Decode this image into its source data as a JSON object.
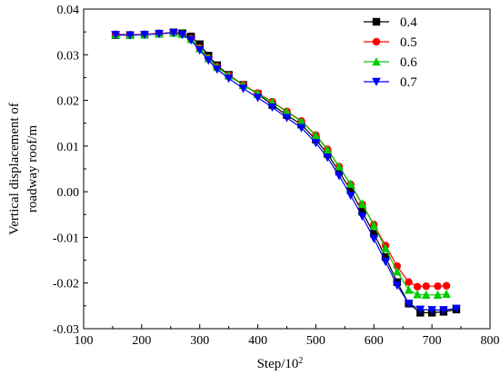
{
  "chart_data": {
    "type": "line",
    "xlabel": "Step/10",
    "xlabel_exponent": "2",
    "ylabel": "Vertical displacement of roadway roof/m",
    "xlim": [
      100,
      800
    ],
    "ylim": [
      -0.03,
      0.04
    ],
    "x_ticks": [
      100,
      200,
      300,
      400,
      500,
      600,
      700,
      800
    ],
    "y_ticks": [
      -0.03,
      -0.02,
      -0.01,
      0.0,
      0.01,
      0.02,
      0.03,
      0.04
    ],
    "x_tick_labels": [
      "100",
      "200",
      "300",
      "400",
      "500",
      "600",
      "700",
      "800"
    ],
    "y_tick_labels": [
      "-0.03",
      "-0.02",
      "-0.01",
      "0.00",
      "0.01",
      "0.02",
      "0.03",
      "0.04"
    ],
    "legend_position": "top-right",
    "series": [
      {
        "name": "0.4",
        "color": "#000000",
        "marker": "square",
        "points": [
          [
            155,
            0.0343
          ],
          [
            180,
            0.0343
          ],
          [
            205,
            0.0344
          ],
          [
            230,
            0.0346
          ],
          [
            255,
            0.0349
          ],
          [
            270,
            0.0347
          ],
          [
            285,
            0.034
          ],
          [
            300,
            0.0323
          ],
          [
            315,
            0.0298
          ],
          [
            330,
            0.0277
          ],
          [
            350,
            0.0256
          ],
          [
            375,
            0.0234
          ],
          [
            400,
            0.0214
          ],
          [
            425,
            0.019
          ],
          [
            450,
            0.0168
          ],
          [
            475,
            0.0147
          ],
          [
            500,
            0.0114
          ],
          [
            520,
            0.0083
          ],
          [
            540,
            0.0044
          ],
          [
            560,
            0.0003
          ],
          [
            580,
            -0.0044
          ],
          [
            600,
            -0.0092
          ],
          [
            620,
            -0.0143
          ],
          [
            640,
            -0.0198
          ],
          [
            660,
            -0.0245
          ],
          [
            680,
            -0.0265
          ],
          [
            700,
            -0.0265
          ],
          [
            720,
            -0.0263
          ],
          [
            742,
            -0.0258
          ]
        ]
      },
      {
        "name": "0.5",
        "color": "#ff0000",
        "marker": "circle",
        "points": [
          [
            155,
            0.0345
          ],
          [
            180,
            0.0344
          ],
          [
            205,
            0.0345
          ],
          [
            230,
            0.0347
          ],
          [
            255,
            0.0348
          ],
          [
            270,
            0.0345
          ],
          [
            285,
            0.0335
          ],
          [
            300,
            0.0315
          ],
          [
            315,
            0.0293
          ],
          [
            330,
            0.0274
          ],
          [
            350,
            0.0255
          ],
          [
            375,
            0.0234
          ],
          [
            400,
            0.0216
          ],
          [
            425,
            0.0197
          ],
          [
            450,
            0.0176
          ],
          [
            475,
            0.0155
          ],
          [
            500,
            0.0124
          ],
          [
            520,
            0.0093
          ],
          [
            540,
            0.0055
          ],
          [
            560,
            0.0016
          ],
          [
            580,
            -0.0028
          ],
          [
            600,
            -0.0072
          ],
          [
            620,
            -0.0118
          ],
          [
            640,
            -0.0163
          ],
          [
            660,
            -0.0198
          ],
          [
            675,
            -0.0208
          ],
          [
            690,
            -0.0207
          ],
          [
            710,
            -0.0207
          ],
          [
            725,
            -0.0206
          ]
        ]
      },
      {
        "name": "0.6",
        "color": "#00cc00",
        "marker": "triangle-up",
        "points": [
          [
            155,
            0.0344
          ],
          [
            180,
            0.0343
          ],
          [
            205,
            0.0344
          ],
          [
            230,
            0.0346
          ],
          [
            255,
            0.0348
          ],
          [
            270,
            0.0345
          ],
          [
            285,
            0.0334
          ],
          [
            300,
            0.0314
          ],
          [
            315,
            0.0292
          ],
          [
            330,
            0.0273
          ],
          [
            350,
            0.0254
          ],
          [
            375,
            0.0233
          ],
          [
            400,
            0.0215
          ],
          [
            425,
            0.0196
          ],
          [
            450,
            0.0175
          ],
          [
            475,
            0.0154
          ],
          [
            500,
            0.0123
          ],
          [
            520,
            0.0092
          ],
          [
            540,
            0.0055
          ],
          [
            560,
            0.0017
          ],
          [
            580,
            -0.0027
          ],
          [
            600,
            -0.0074
          ],
          [
            620,
            -0.0124
          ],
          [
            640,
            -0.0175
          ],
          [
            660,
            -0.0215
          ],
          [
            675,
            -0.0225
          ],
          [
            690,
            -0.0226
          ],
          [
            710,
            -0.0226
          ],
          [
            725,
            -0.0224
          ]
        ]
      },
      {
        "name": "0.7",
        "color": "#0000ff",
        "marker": "triangle-down",
        "points": [
          [
            155,
            0.0344
          ],
          [
            180,
            0.0343
          ],
          [
            205,
            0.0344
          ],
          [
            230,
            0.0346
          ],
          [
            255,
            0.0348
          ],
          [
            270,
            0.0344
          ],
          [
            285,
            0.0332
          ],
          [
            300,
            0.031
          ],
          [
            315,
            0.0288
          ],
          [
            330,
            0.0268
          ],
          [
            350,
            0.0248
          ],
          [
            375,
            0.0226
          ],
          [
            400,
            0.0206
          ],
          [
            425,
            0.0185
          ],
          [
            450,
            0.0162
          ],
          [
            475,
            0.014
          ],
          [
            500,
            0.0107
          ],
          [
            520,
            0.0075
          ],
          [
            540,
            0.0035
          ],
          [
            560,
            -0.0008
          ],
          [
            580,
            -0.0054
          ],
          [
            600,
            -0.0103
          ],
          [
            620,
            -0.0153
          ],
          [
            640,
            -0.0205
          ],
          [
            660,
            -0.0245
          ],
          [
            680,
            -0.0258
          ],
          [
            700,
            -0.0259
          ],
          [
            720,
            -0.0259
          ],
          [
            742,
            -0.0256
          ]
        ]
      }
    ]
  }
}
